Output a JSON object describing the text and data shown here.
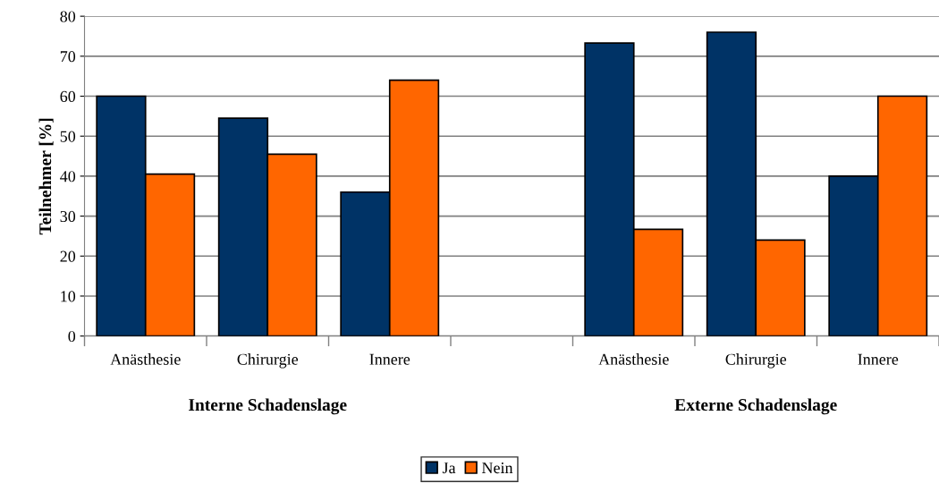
{
  "chart_data": {
    "type": "bar",
    "ylabel": "Teilnehmer [%]",
    "categories": [
      "Anästhesie",
      "Chirurgie",
      "Innere",
      null,
      "Anästhesie",
      "Chirurgie",
      "Innere"
    ],
    "series": [
      {
        "name": "Ja",
        "color": "#003366",
        "values": [
          60,
          54.5,
          36,
          null,
          73.3,
          76,
          40
        ]
      },
      {
        "name": "Nein",
        "color": "#ff6600",
        "values": [
          40.5,
          45.5,
          64,
          null,
          26.7,
          24,
          60
        ]
      }
    ],
    "annotations": [
      "Interne Schadenslage",
      "Externe Schadenslage"
    ],
    "ylim": [
      0,
      80
    ],
    "yticks": [
      0,
      10,
      20,
      30,
      40,
      50,
      60,
      70,
      80
    ],
    "grid": "y",
    "legend": "bottom"
  }
}
